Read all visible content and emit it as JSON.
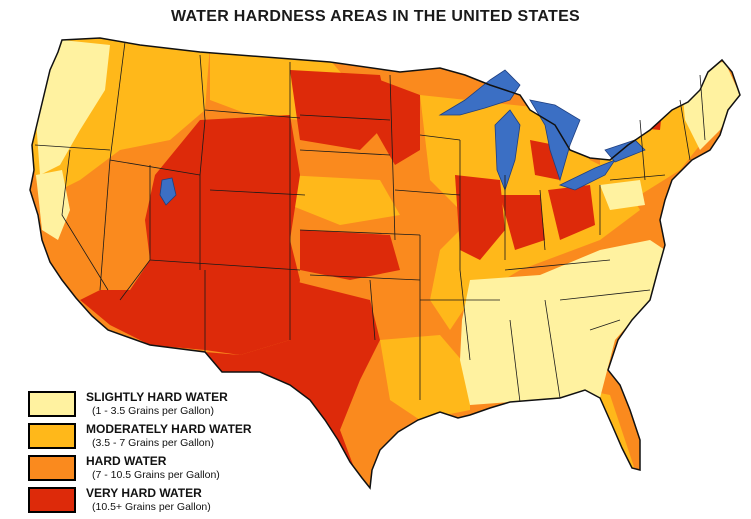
{
  "title": "WATER HARDNESS AREAS IN THE UNITED STATES",
  "colors": {
    "slightly_hard": "#FFF2A0",
    "moderately_hard": "#FFB81A",
    "hard": "#FA8A1E",
    "very_hard": "#DD2A0A",
    "water": "#3B6FC4",
    "border": "#111111"
  },
  "legend": [
    {
      "label": "SLIGHTLY HARD WATER",
      "range": "(1 - 3.5 Grains per Gallon)",
      "color_key": "slightly_hard"
    },
    {
      "label": "MODERATELY HARD WATER",
      "range": "(3.5 - 7 Grains per Gallon)",
      "color_key": "moderately_hard"
    },
    {
      "label": "HARD WATER",
      "range": "(7 - 10.5 Grains per Gallon)",
      "color_key": "hard"
    },
    {
      "label": "VERY HARD WATER",
      "range": "(10.5+ Grains per Gallon)",
      "color_key": "very_hard"
    }
  ]
}
